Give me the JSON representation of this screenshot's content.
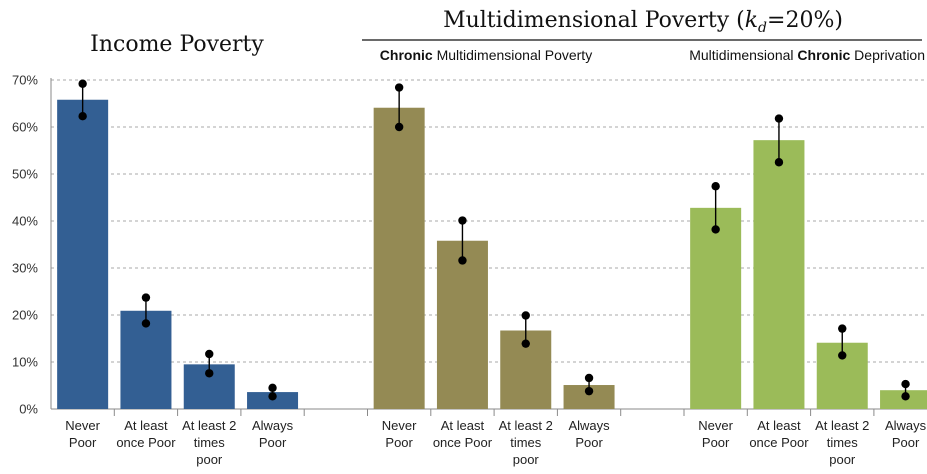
{
  "chart_data": {
    "type": "bar",
    "y_ticks": [
      "0%",
      "10%",
      "20%",
      "30%",
      "40%",
      "50%",
      "60%",
      "70%"
    ],
    "ylim": [
      0,
      70
    ],
    "grid": true,
    "titles": {
      "left": "Income Poverty",
      "main": "Multidimensional Poverty (",
      "main_k": "k",
      "main_d": "d",
      "main_tail": "=20%)",
      "sub1_bold": "Chronic",
      "sub1_rest": " Multidimensional Poverty",
      "sub2_pre": "Multidimensional ",
      "sub2_bold": "Chronic",
      "sub2_rest": " Deprivation"
    },
    "groups": [
      {
        "name": "Income Poverty",
        "color": "#335f93",
        "categories": [
          [
            "Never",
            "Poor"
          ],
          [
            "At least",
            "once Poor"
          ],
          [
            "At least 2",
            "times",
            "poor"
          ],
          [
            "Always",
            "Poor"
          ]
        ],
        "values": [
          65.8,
          20.9,
          9.5,
          3.6
        ],
        "err_low": [
          62.3,
          18.2,
          7.6,
          2.7
        ],
        "err_high": [
          69.2,
          23.7,
          11.7,
          4.5
        ]
      },
      {
        "name": "Chronic Multidimensional Poverty",
        "color": "#948a54",
        "categories": [
          [
            "Never",
            "Poor"
          ],
          [
            "At least",
            "once Poor"
          ],
          [
            "At least 2",
            "times",
            "poor"
          ],
          [
            "Always",
            "Poor"
          ]
        ],
        "values": [
          64.1,
          35.8,
          16.7,
          5.1
        ],
        "err_low": [
          60.0,
          31.6,
          13.9,
          3.8
        ],
        "err_high": [
          68.4,
          40.1,
          19.9,
          6.6
        ]
      },
      {
        "name": "Multidimensional Chronic Deprivation",
        "color": "#9bbb59",
        "categories": [
          [
            "Never",
            "Poor"
          ],
          [
            "At least",
            "once Poor"
          ],
          [
            "At least 2",
            "times",
            "poor"
          ],
          [
            "Always",
            "Poor"
          ]
        ],
        "values": [
          42.8,
          57.2,
          14.1,
          4.0
        ],
        "err_low": [
          38.2,
          52.5,
          11.4,
          2.7
        ],
        "err_high": [
          47.4,
          61.8,
          17.1,
          5.3
        ]
      }
    ]
  }
}
